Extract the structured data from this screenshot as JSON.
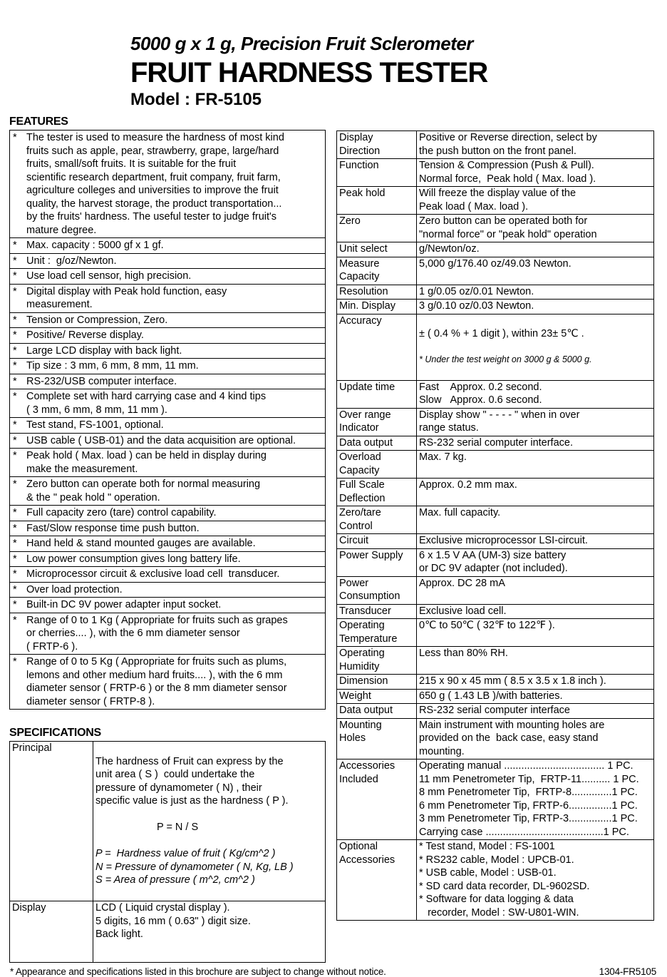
{
  "header": {
    "subtitle": "5000 g x 1 g, Precision Fruit Sclerometer",
    "title": "FRUIT HARDNESS TESTER",
    "model": "Model : FR-5105"
  },
  "features": {
    "heading": "FEATURES",
    "bullet": "*",
    "items": [
      "The tester is used to measure the hardness of most kind\nfruits such as apple, pear, strawberry, grape, large/hard\nfruits, small/soft fruits. It is suitable for the fruit\nscientific research department, fruit company, fruit farm,\nagriculture colleges and universities to improve the fruit\nquality, the harvest storage, the product transportation...\nby the fruits' hardness. The useful tester to judge fruit's\nmature degree.",
      "Max. capacity : 5000 gf x 1 gf.",
      "Unit :  g/oz/Newton.",
      "Use load cell sensor, high precision.",
      "Digital display with Peak hold function, easy\nmeasurement.",
      "Tension or Compression, Zero.",
      "Positive/ Reverse display.",
      "Large LCD display with back light.",
      "Tip size : 3 mm, 6 mm, 8 mm, 11 mm.",
      "RS-232/USB computer interface.",
      "Complete set with hard carrying case and 4 kind tips\n( 3 mm, 6 mm, 8 mm, 11 mm ).",
      "Test stand, FS-1001, optional.",
      "USB cable ( USB-01) and the data acquisition are optional.",
      "Peak hold ( Max. load ) can be held in display during\nmake the measurement.",
      "Zero button can operate both for normal measuring\n& the \" peak hold \" operation.",
      "Full capacity zero (tare) control capability.",
      "Fast/Slow response time push button.",
      "Hand held & stand mounted gauges are available.",
      "Low power consumption gives long battery life.",
      "Microprocessor circuit & exclusive load cell  transducer.",
      "Over load protection.",
      "Built-in DC 9V power adapter input socket.",
      "Range of 0 to 1 Kg ( Appropriate for fruits such as grapes\nor cherries.... ), with the 6 mm diameter sensor\n( FRTP-6 ).",
      "Range of 0 to 5 Kg ( Appropriate for fruits such as plums,\nlemons and other medium hard fruits.... ), with the 6 mm\ndiameter sensor ( FRTP-6 ) or the 8 mm diameter sensor\ndiameter sensor ( FRTP-8 )."
    ]
  },
  "specifications": {
    "heading": "SPECIFICATIONS",
    "principal_label": "Principal",
    "principal_text": "The hardness of Fruit can express by the\nunit area ( S )  could undertake the\npressure of dynamometer ( N) , their\nspecific value is just as the hardness ( P ).",
    "principal_formula": "P = N / S",
    "principal_italic": "P =  Hardness value of fruit ( Kg/cm^2 )\nN = Pressure of dynamometer ( N, Kg, LB )\nS = Area of pressure ( m^2, cm^2 )",
    "display_label": "Display",
    "display_text": "LCD ( Liquid crystal display ).\n5 digits, 16 mm ( 0.63\" ) digit size.\nBack light."
  },
  "spec_table": {
    "rows": [
      {
        "label": "Display\nDirection",
        "value": "Positive or Reverse direction, select by\nthe push button on the front panel."
      },
      {
        "label": "Function",
        "value": "Tension & Compression (Push & Pull).\nNormal force,  Peak hold ( Max. load )."
      },
      {
        "label": "Peak hold",
        "value": "Will freeze the display value of the\nPeak load ( Max. load )."
      },
      {
        "label": "Zero",
        "value": "Zero button can be operated both for\n\"normal force\" or \"peak hold\" operation"
      },
      {
        "label": "Unit select",
        "value": "g/Newton/oz."
      },
      {
        "label": "Measure\nCapacity",
        "value": "5,000 g/176.40 oz/49.03 Newton."
      },
      {
        "label": "Resolution",
        "value": "1 g/0.05 oz/0.01 Newton."
      },
      {
        "label": "Min. Display",
        "value": "3 g/0.10 oz/0.03 Newton."
      },
      {
        "label": "Accuracy",
        "value": "± ( 0.4 % + 1 digit ), within 23± 5℃ .",
        "note": "* Under the test weight on 3000 g & 5000 g."
      },
      {
        "label": "Update time",
        "value": "Fast    Approx. 0.2 second.\nSlow   Approx. 0.6 second."
      },
      {
        "label": "Over range\nIndicator",
        "value": "Display show \" - - - - \" when in over\nrange status."
      },
      {
        "label": "Data output",
        "value": "RS-232 serial computer interface."
      },
      {
        "label": "Overload\nCapacity",
        "value": "Max. 7 kg."
      },
      {
        "label": "Full Scale\nDeflection",
        "value": "Approx. 0.2 mm max."
      },
      {
        "label": "Zero/tare\nControl",
        "value": "Max. full capacity."
      },
      {
        "label": "Circuit",
        "value": "Exclusive microprocessor LSI-circuit."
      },
      {
        "label": "Power Supply",
        "value": "6 x 1.5 V AA (UM-3) size battery\nor DC 9V adapter (not included)."
      },
      {
        "label": "Power\nConsumption",
        "value": "Approx. DC 28 mA"
      },
      {
        "label": "Transducer",
        "value": "Exclusive load cell."
      },
      {
        "label": "Operating\nTemperature",
        "value": "0℃ to 50℃ ( 32℉ to 122℉ )."
      },
      {
        "label": "Operating\nHumidity",
        "value": "Less than 80% RH."
      },
      {
        "label": "Dimension",
        "value": "215 x 90 x 45 mm ( 8.5 x 3.5 x 1.8 inch )."
      },
      {
        "label": "Weight",
        "value": "650 g ( 1.43 LB )/with batteries."
      },
      {
        "label": "Data output",
        "value": "RS-232 serial computer interface"
      },
      {
        "label": "Mounting\nHoles",
        "value": "Main instrument with mounting holes are\nprovided on the  back case, easy stand\nmounting."
      },
      {
        "label": "Accessories\nIncluded",
        "value": "Operating manual ................................... 1 PC.\n11 mm Penetrometer Tip,  FRTP-11.......... 1 PC.\n8 mm Penetrometer Tip,  FRTP-8..............1 PC.\n6 mm Penetrometer Tip, FRTP-6...............1 PC.\n3 mm Penetrometer Tip, FRTP-3...............1 PC.\nCarrying case .........................................1 PC."
      },
      {
        "label": "Optional\nAccessories",
        "value": "* Test stand, Model : FS-1001\n* RS232 cable, Model : UPCB-01.\n* USB cable, Model : USB-01.\n* SD card data recorder, DL-9602SD.\n* Software for data logging & data\n   recorder, Model : SW-U801-WIN."
      }
    ]
  },
  "footer": {
    "note": "* Appearance and specifications listed in this brochure are subject to change without notice.",
    "code": "1304-FR5105"
  }
}
